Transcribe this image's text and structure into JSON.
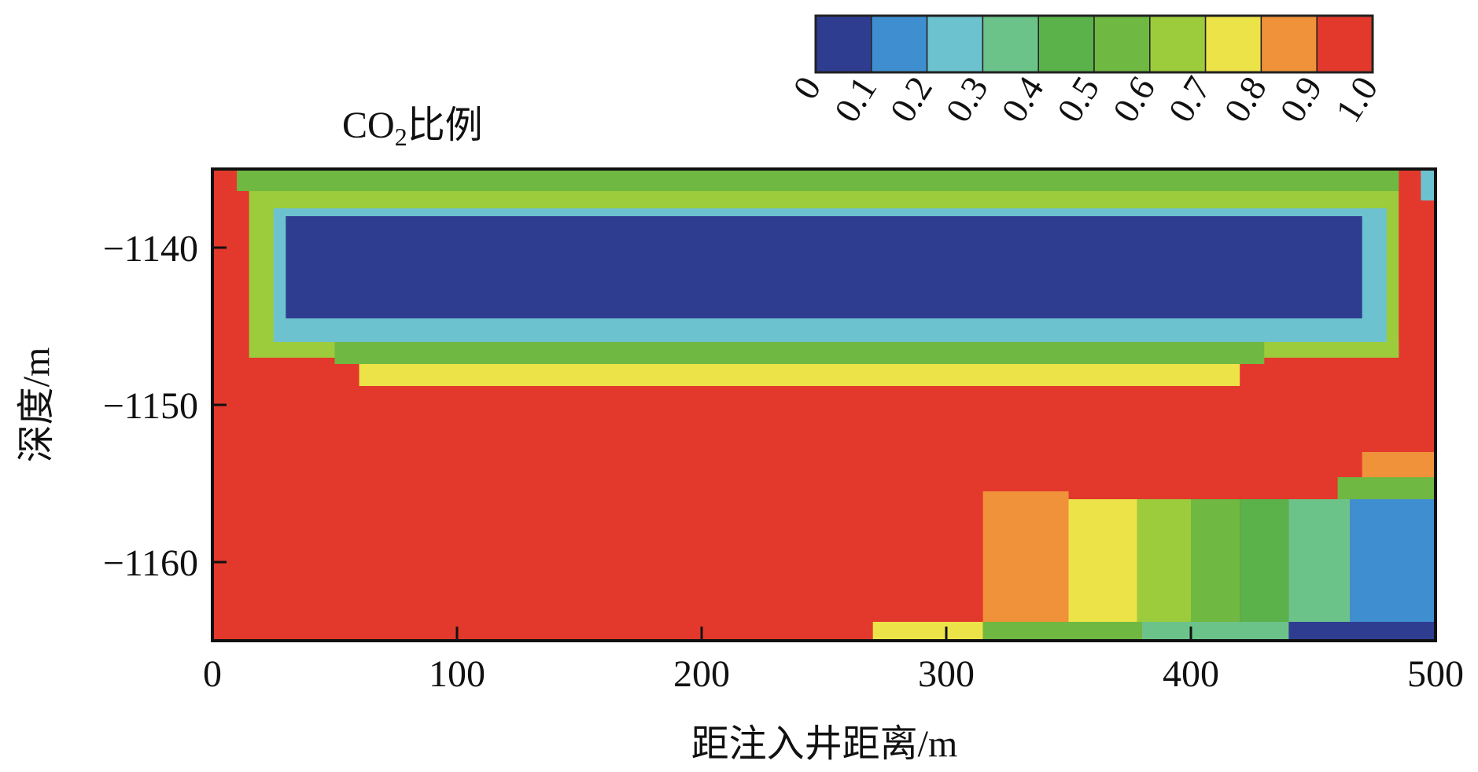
{
  "chart_data": {
    "type": "heatmap",
    "title": "CO₂比例",
    "title_parts": {
      "main": "CO",
      "subscript": "2",
      "suffix": "比例"
    },
    "xlabel": "距注入井距离/m",
    "ylabel": "深度/m",
    "xlim": [
      0,
      500
    ],
    "ylim": [
      -1165,
      -1135
    ],
    "xticks": [
      0,
      100,
      200,
      300,
      400,
      500
    ],
    "xtick_labels": [
      "0",
      "100",
      "200",
      "300",
      "400",
      "500"
    ],
    "yticks": [
      -1140,
      -1150,
      -1160
    ],
    "ytick_labels": [
      "−1140",
      "−1150",
      "−1160"
    ],
    "colorbar": {
      "position": "top-right",
      "range": [
        0,
        1.0
      ],
      "tick_labels": [
        "0",
        "0.1",
        "0.2",
        "0.3",
        "0.4",
        "0.5",
        "0.6",
        "0.7",
        "0.8",
        "0.9",
        "1.0"
      ],
      "colors": [
        "#2f3d91",
        "#3f8fd0",
        "#6dc2cf",
        "#6cc38a",
        "#5bb14a",
        "#6fb841",
        "#9ccc3c",
        "#ece349",
        "#f0923a",
        "#e2392c"
      ]
    },
    "fill_value": 1.0,
    "regions": [
      {
        "x": [
          10,
          490
        ],
        "y": [
          -1135,
          -1136.4
        ],
        "value": 0.55
      },
      {
        "x": [
          15,
          485
        ],
        "y": [
          -1136.4,
          -1147
        ],
        "value": 0.6
      },
      {
        "x": [
          25,
          480
        ],
        "y": [
          -1137.5,
          -1146
        ],
        "value": 0.25
      },
      {
        "x": [
          30,
          470
        ],
        "y": [
          -1138,
          -1144.5
        ],
        "value": 0.04
      },
      {
        "x": [
          45,
          430
        ],
        "y": [
          -1144.5,
          -1146
        ],
        "value": 0.2
      },
      {
        "x": [
          50,
          430
        ],
        "y": [
          -1146,
          -1147.4
        ],
        "value": 0.5
      },
      {
        "x": [
          60,
          420
        ],
        "y": [
          -1147.4,
          -1148.8
        ],
        "value": 0.75
      },
      {
        "x": [
          90,
          470
        ],
        "y": [
          -1148.8,
          -1150
        ],
        "value": 0.9
      },
      {
        "x": [
          470,
          500
        ],
        "y": [
          -1150,
          -1153
        ],
        "value": 0.92
      },
      {
        "x": [
          470,
          500
        ],
        "y": [
          -1153,
          -1154.6
        ],
        "value": 0.8
      },
      {
        "x": [
          460,
          500
        ],
        "y": [
          -1154.6,
          -1156
        ],
        "value": 0.55
      },
      {
        "x": [
          270,
          315
        ],
        "y": [
          -1155.5,
          -1163.8
        ],
        "value": 0.93
      },
      {
        "x": [
          315,
          350
        ],
        "y": [
          -1155.5,
          -1163.8
        ],
        "value": 0.85
      },
      {
        "x": [
          350,
          378
        ],
        "y": [
          -1156,
          -1163.8
        ],
        "value": 0.75
      },
      {
        "x": [
          378,
          400
        ],
        "y": [
          -1156,
          -1163.8
        ],
        "value": 0.62
      },
      {
        "x": [
          400,
          420
        ],
        "y": [
          -1156,
          -1163.8
        ],
        "value": 0.55
      },
      {
        "x": [
          420,
          440
        ],
        "y": [
          -1156,
          -1163.8
        ],
        "value": 0.45
      },
      {
        "x": [
          440,
          465
        ],
        "y": [
          -1156,
          -1163.8
        ],
        "value": 0.3
      },
      {
        "x": [
          465,
          500
        ],
        "y": [
          -1156,
          -1163.8
        ],
        "value": 0.1
      },
      {
        "x": [
          270,
          315
        ],
        "y": [
          -1163.8,
          -1165
        ],
        "value": 0.75
      },
      {
        "x": [
          315,
          380
        ],
        "y": [
          -1163.8,
          -1165
        ],
        "value": 0.55
      },
      {
        "x": [
          380,
          440
        ],
        "y": [
          -1163.8,
          -1165
        ],
        "value": 0.35
      },
      {
        "x": [
          440,
          500
        ],
        "y": [
          -1163.8,
          -1165
        ],
        "value": 0.08
      },
      {
        "x": [
          485,
          500
        ],
        "y": [
          -1135,
          -1146
        ],
        "value": 0.9
      },
      {
        "x": [
          494,
          500
        ],
        "y": [
          -1135,
          -1137
        ],
        "value": 0.2
      }
    ]
  }
}
